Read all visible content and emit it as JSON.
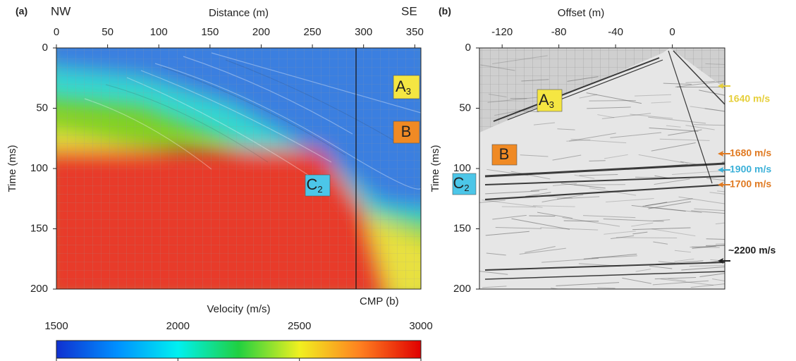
{
  "chart_data": [
    {
      "type": "image",
      "panel_label": "(a)",
      "title": "Distance (m)",
      "ylabel": "Time (ms)",
      "direction_labels": [
        "NW",
        "SE"
      ],
      "xlim": [
        0,
        356
      ],
      "xticks": [
        0,
        50,
        100,
        150,
        200,
        250,
        300,
        350
      ],
      "ylim": [
        200,
        0
      ],
      "yticks": [
        0,
        50,
        100,
        150,
        200
      ],
      "annotations": [
        {
          "text": "A",
          "sub": "3",
          "color": "#f5e642"
        },
        {
          "text": "B",
          "color": "#f08a24"
        },
        {
          "text": "C",
          "sub": "2",
          "color": "#4cc6e8"
        },
        {
          "text": "CMP (b)"
        }
      ]
    },
    {
      "type": "image",
      "panel_label": "(b)",
      "title": "Offset (m)",
      "ylabel": "Time (ms)",
      "xlim": [
        -136,
        37
      ],
      "xticks": [
        -120,
        -80,
        -40,
        0
      ],
      "ylim": [
        200,
        0
      ],
      "yticks": [
        0,
        50,
        100,
        150,
        200
      ],
      "annotations": [
        {
          "text": "A",
          "sub": "3",
          "color": "#f5e642"
        },
        {
          "text": "B",
          "color": "#f08a24"
        },
        {
          "text": "C",
          "sub": "2",
          "color": "#4cc6e8"
        },
        {
          "text": "1640 m/s",
          "color": "#e6cf3a"
        },
        {
          "text": "1680 m/s",
          "color": "#e07a22"
        },
        {
          "text": "1900 m/s",
          "color": "#3bb0d8"
        },
        {
          "text": "1700 m/s",
          "color": "#e07a22"
        },
        {
          "text": "~2200 m/s",
          "color": "#222222"
        }
      ]
    },
    {
      "type": "colorbar",
      "title": "Velocity (m/s)",
      "xlim": [
        1500,
        3000
      ],
      "xticks": [
        1500,
        2000,
        2500,
        3000
      ],
      "colors": [
        "#1030d0",
        "#0090ff",
        "#00f0f0",
        "#20d040",
        "#f0f020",
        "#ff8020",
        "#e00000"
      ]
    }
  ]
}
